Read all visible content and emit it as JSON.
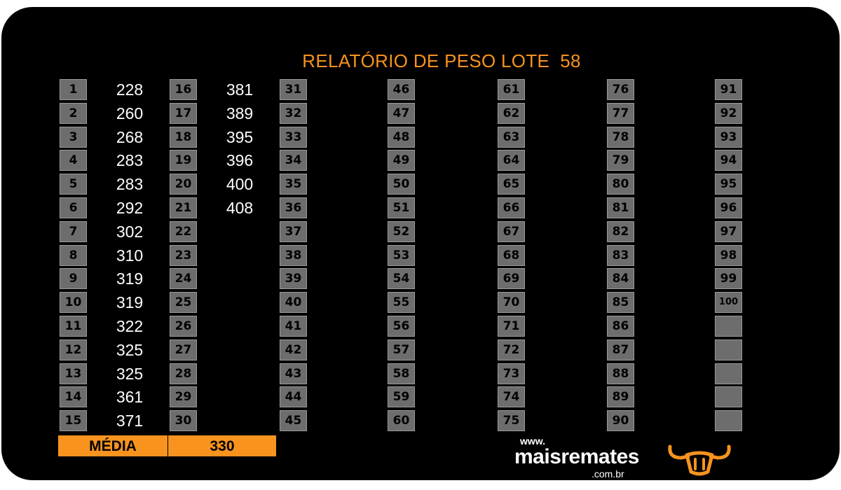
{
  "title": "RELATÓRIO DE PESO LOTE  58",
  "columns": [
    {
      "rows": [
        {
          "n": "1",
          "v": "228"
        },
        {
          "n": "2",
          "v": "260"
        },
        {
          "n": "3",
          "v": "268"
        },
        {
          "n": "4",
          "v": "283"
        },
        {
          "n": "5",
          "v": "283"
        },
        {
          "n": "6",
          "v": "292"
        },
        {
          "n": "7",
          "v": "302"
        },
        {
          "n": "8",
          "v": "310"
        },
        {
          "n": "9",
          "v": "319"
        },
        {
          "n": "10",
          "v": "319"
        },
        {
          "n": "11",
          "v": "322"
        },
        {
          "n": "12",
          "v": "325"
        },
        {
          "n": "13",
          "v": "325"
        },
        {
          "n": "14",
          "v": "361"
        },
        {
          "n": "15",
          "v": "371"
        }
      ]
    },
    {
      "rows": [
        {
          "n": "16",
          "v": "381"
        },
        {
          "n": "17",
          "v": "389"
        },
        {
          "n": "18",
          "v": "395"
        },
        {
          "n": "19",
          "v": "396"
        },
        {
          "n": "20",
          "v": "400"
        },
        {
          "n": "21",
          "v": "408"
        },
        {
          "n": "22",
          "v": ""
        },
        {
          "n": "23",
          "v": ""
        },
        {
          "n": "24",
          "v": ""
        },
        {
          "n": "25",
          "v": ""
        },
        {
          "n": "26",
          "v": ""
        },
        {
          "n": "27",
          "v": ""
        },
        {
          "n": "28",
          "v": ""
        },
        {
          "n": "29",
          "v": ""
        },
        {
          "n": "30",
          "v": ""
        }
      ]
    },
    {
      "rows": [
        {
          "n": "31"
        },
        {
          "n": "32"
        },
        {
          "n": "33"
        },
        {
          "n": "34"
        },
        {
          "n": "35"
        },
        {
          "n": "36"
        },
        {
          "n": "37"
        },
        {
          "n": "38"
        },
        {
          "n": "39"
        },
        {
          "n": "40"
        },
        {
          "n": "41"
        },
        {
          "n": "42"
        },
        {
          "n": "43"
        },
        {
          "n": "44"
        },
        {
          "n": "45"
        }
      ]
    },
    {
      "rows": [
        {
          "n": "46"
        },
        {
          "n": "47"
        },
        {
          "n": "48"
        },
        {
          "n": "49"
        },
        {
          "n": "50"
        },
        {
          "n": "51"
        },
        {
          "n": "52"
        },
        {
          "n": "53"
        },
        {
          "n": "54"
        },
        {
          "n": "55"
        },
        {
          "n": "56"
        },
        {
          "n": "57"
        },
        {
          "n": "58"
        },
        {
          "n": "59"
        },
        {
          "n": "60"
        }
      ]
    },
    {
      "rows": [
        {
          "n": "61"
        },
        {
          "n": "62"
        },
        {
          "n": "63"
        },
        {
          "n": "64"
        },
        {
          "n": "65"
        },
        {
          "n": "66"
        },
        {
          "n": "67"
        },
        {
          "n": "68"
        },
        {
          "n": "69"
        },
        {
          "n": "70"
        },
        {
          "n": "71"
        },
        {
          "n": "72"
        },
        {
          "n": "73"
        },
        {
          "n": "74"
        },
        {
          "n": "75"
        }
      ]
    },
    {
      "rows": [
        {
          "n": "76"
        },
        {
          "n": "77"
        },
        {
          "n": "78"
        },
        {
          "n": "79"
        },
        {
          "n": "80"
        },
        {
          "n": "81"
        },
        {
          "n": "82"
        },
        {
          "n": "83"
        },
        {
          "n": "84"
        },
        {
          "n": "85"
        },
        {
          "n": "86"
        },
        {
          "n": "87"
        },
        {
          "n": "88"
        },
        {
          "n": "89"
        },
        {
          "n": "90"
        }
      ]
    },
    {
      "rows": [
        {
          "n": "91"
        },
        {
          "n": "92"
        },
        {
          "n": "93"
        },
        {
          "n": "94"
        },
        {
          "n": "95"
        },
        {
          "n": "96"
        },
        {
          "n": "97"
        },
        {
          "n": "98"
        },
        {
          "n": "99"
        },
        {
          "n": "100"
        },
        {
          "n": ""
        },
        {
          "n": ""
        },
        {
          "n": ""
        },
        {
          "n": ""
        },
        {
          "n": ""
        }
      ]
    }
  ],
  "media": {
    "label": "MÉDIA",
    "value": "330"
  },
  "brand": {
    "www": "www.",
    "name": "maisremates",
    "domain": ".com.br",
    "icon": "bull-head-icon"
  },
  "colors": {
    "accent": "#f7931e",
    "background": "#000000",
    "cell": "#6d6d6d",
    "text": "#ffffff"
  }
}
